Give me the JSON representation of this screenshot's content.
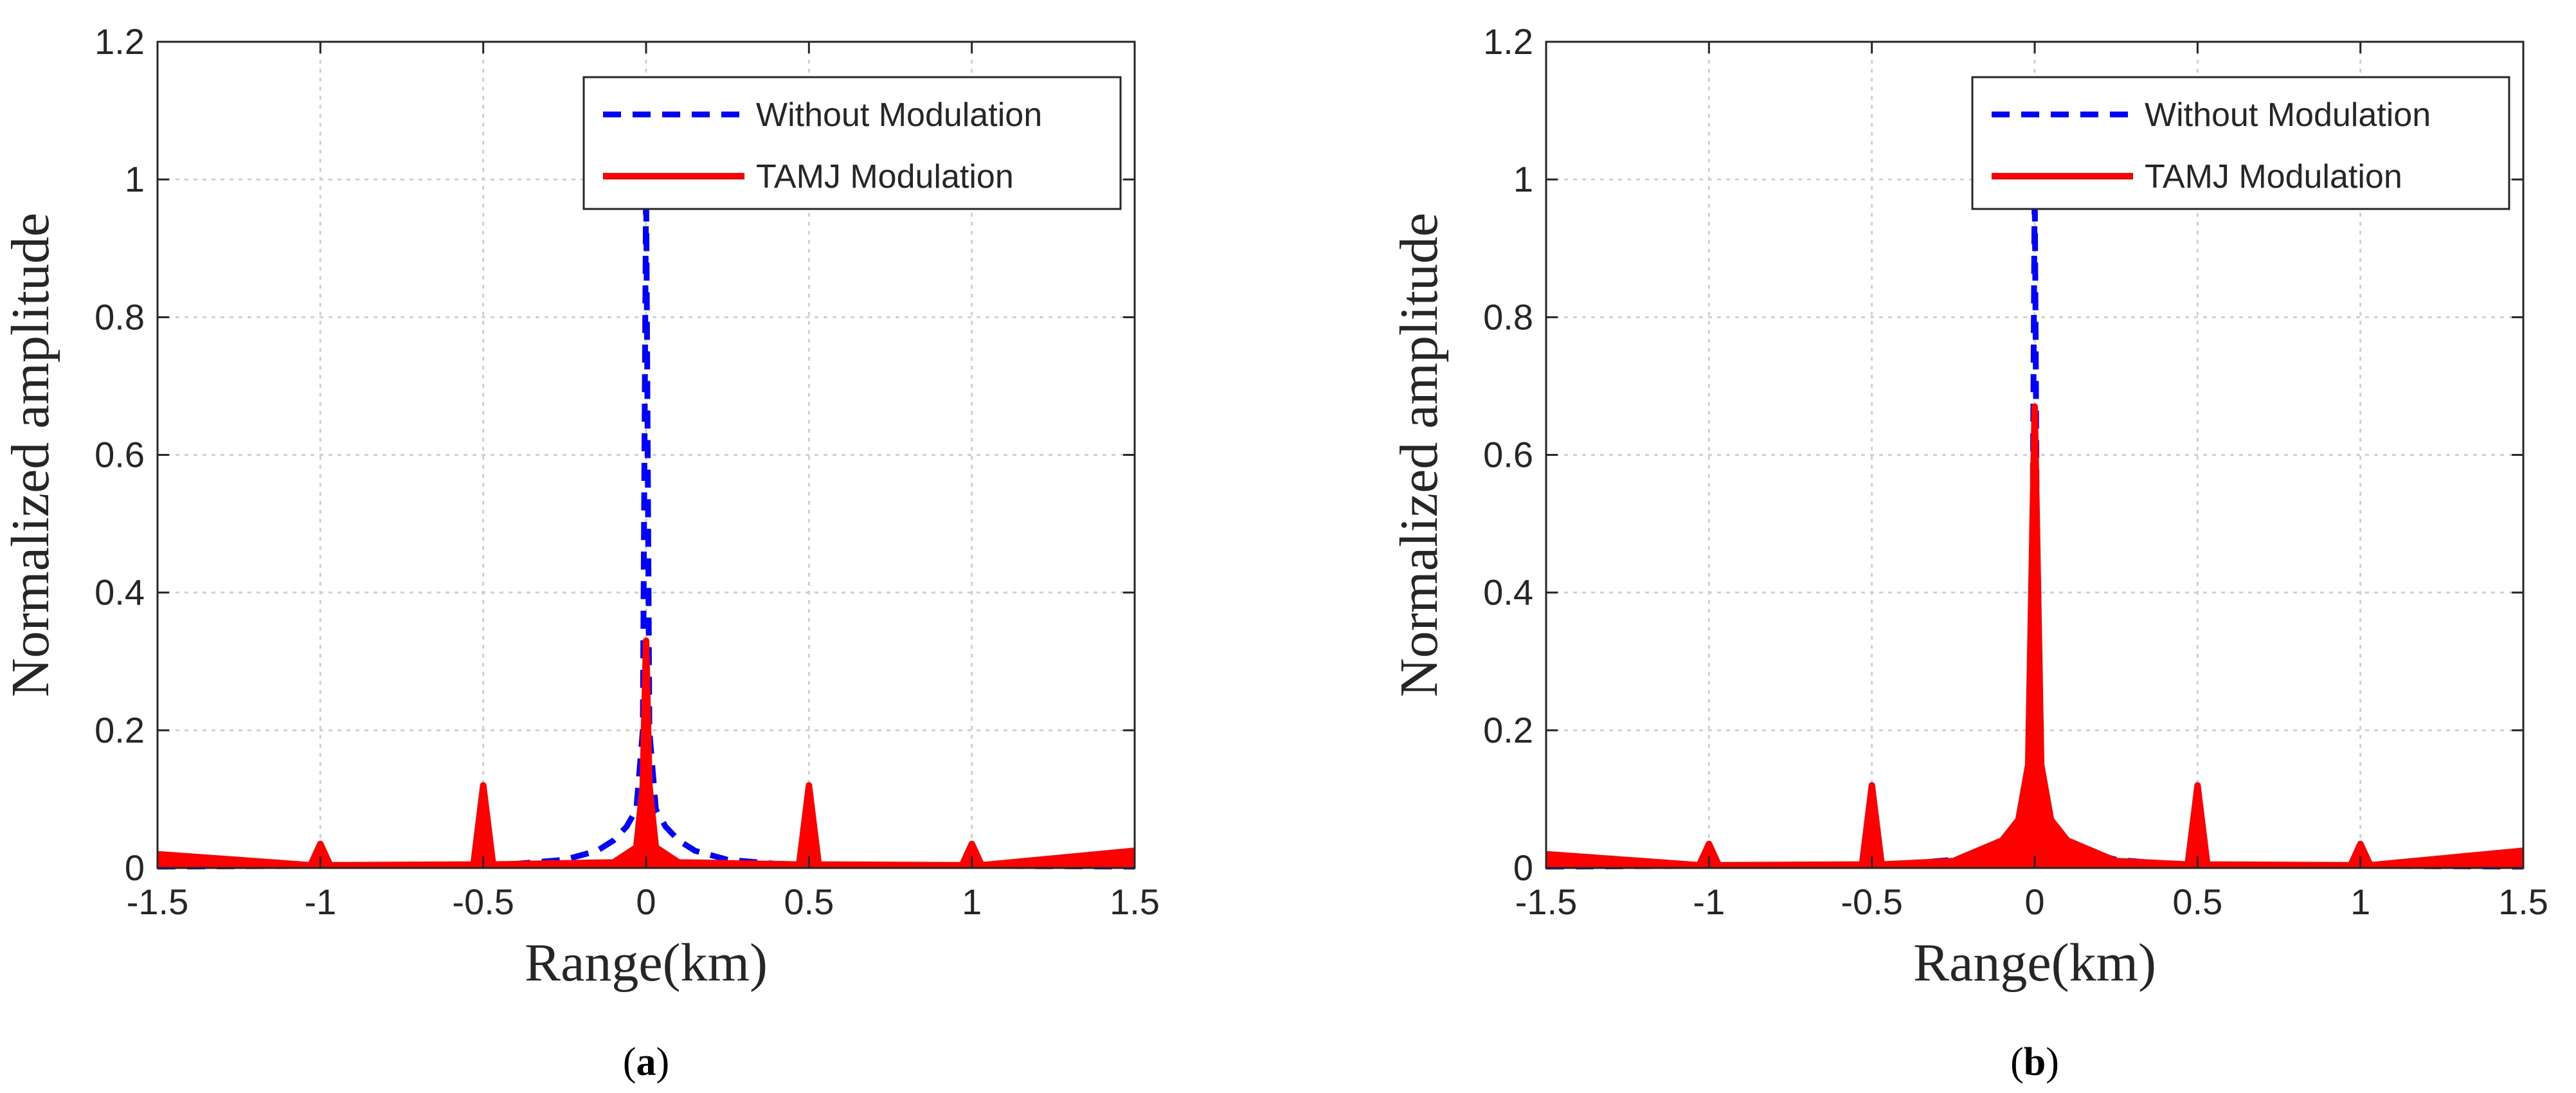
{
  "chart_data": [
    {
      "type": "line",
      "panel": "a",
      "caption": "a",
      "xlabel": "Range(km)",
      "ylabel": "Normalized amplitude",
      "xlim": [
        -1.5,
        1.5
      ],
      "ylim": [
        0,
        1.2
      ],
      "xticks": [
        -1.5,
        -1,
        -0.5,
        0,
        0.5,
        1,
        1.5
      ],
      "xtick_labels": [
        "-1.5",
        "-1",
        "-0.5",
        "0",
        "0.5",
        "1",
        "1.5"
      ],
      "yticks": [
        0,
        0.2,
        0.4,
        0.6,
        0.8,
        1,
        1.2
      ],
      "ytick_labels": [
        "0",
        "0.2",
        "0.4",
        "0.6",
        "0.8",
        "1",
        "1.2"
      ],
      "grid": true,
      "legend_position": "top-right",
      "series": [
        {
          "name": "Without Modulation",
          "style": "dashed",
          "color": "#0000ff",
          "x": [
            -1.5,
            -1.0,
            -0.6,
            -0.4,
            -0.25,
            -0.15,
            -0.1,
            -0.06,
            -0.03,
            -0.01,
            0.0,
            0.01,
            0.03,
            0.06,
            0.1,
            0.15,
            0.25,
            0.4,
            0.6,
            1.0,
            1.5
          ],
          "y": [
            0.002,
            0.003,
            0.004,
            0.006,
            0.012,
            0.025,
            0.04,
            0.06,
            0.085,
            0.2,
            1.0,
            0.2,
            0.085,
            0.06,
            0.04,
            0.025,
            0.012,
            0.006,
            0.004,
            0.003,
            0.002
          ]
        },
        {
          "name": "TAMJ Modulation",
          "style": "solid",
          "color": "#ff0000",
          "x": [
            -1.5,
            -1.03,
            -1.0,
            -0.97,
            -0.53,
            -0.5,
            -0.47,
            -0.1,
            -0.03,
            -0.01,
            0.0,
            0.01,
            0.03,
            0.1,
            0.47,
            0.5,
            0.53,
            0.97,
            1.0,
            1.03,
            1.5
          ],
          "y": [
            0.02,
            0.004,
            0.035,
            0.004,
            0.005,
            0.12,
            0.005,
            0.008,
            0.03,
            0.12,
            0.33,
            0.12,
            0.03,
            0.008,
            0.005,
            0.12,
            0.005,
            0.004,
            0.035,
            0.004,
            0.025
          ]
        }
      ]
    },
    {
      "type": "line",
      "panel": "b",
      "caption": "b",
      "xlabel": "Range(km)",
      "ylabel": "Normalized amplitude",
      "xlim": [
        -1.5,
        1.5
      ],
      "ylim": [
        0,
        1.2
      ],
      "xticks": [
        -1.5,
        -1,
        -0.5,
        0,
        0.5,
        1,
        1.5
      ],
      "xtick_labels": [
        "-1.5",
        "-1",
        "-0.5",
        "0",
        "0.5",
        "1",
        "1.5"
      ],
      "yticks": [
        0,
        0.2,
        0.4,
        0.6,
        0.8,
        1,
        1.2
      ],
      "ytick_labels": [
        "0",
        "0.2",
        "0.4",
        "0.6",
        "0.8",
        "1",
        "1.2"
      ],
      "grid": true,
      "legend_position": "top-right",
      "series": [
        {
          "name": "Without Modulation",
          "style": "dashed",
          "color": "#0000ff",
          "x": [
            -1.5,
            -1.0,
            -0.6,
            -0.4,
            -0.25,
            -0.15,
            -0.1,
            -0.06,
            -0.03,
            -0.01,
            0.0,
            0.01,
            0.03,
            0.06,
            0.1,
            0.15,
            0.25,
            0.4,
            0.6,
            1.0,
            1.5
          ],
          "y": [
            0.002,
            0.003,
            0.004,
            0.006,
            0.012,
            0.025,
            0.04,
            0.06,
            0.085,
            0.2,
            1.0,
            0.2,
            0.085,
            0.06,
            0.04,
            0.025,
            0.012,
            0.006,
            0.004,
            0.003,
            0.002
          ]
        },
        {
          "name": "TAMJ Modulation",
          "style": "solid",
          "color": "#ff0000",
          "x": [
            -1.5,
            -1.03,
            -1.0,
            -0.97,
            -0.53,
            -0.5,
            -0.47,
            -0.25,
            -0.1,
            -0.05,
            -0.02,
            0.0,
            0.02,
            0.05,
            0.1,
            0.25,
            0.47,
            0.5,
            0.53,
            0.97,
            1.0,
            1.03,
            1.5
          ],
          "y": [
            0.02,
            0.004,
            0.035,
            0.004,
            0.005,
            0.12,
            0.005,
            0.01,
            0.04,
            0.07,
            0.15,
            0.67,
            0.15,
            0.07,
            0.04,
            0.01,
            0.005,
            0.12,
            0.005,
            0.004,
            0.035,
            0.004,
            0.025
          ]
        }
      ]
    }
  ]
}
